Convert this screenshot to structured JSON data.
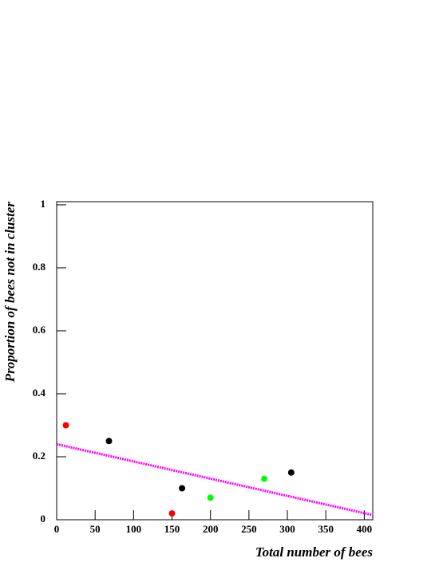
{
  "chart_data": {
    "type": "scatter",
    "x_label": "Total number of bees",
    "y_label": "Proportion of bees not in cluster",
    "x": [
      12,
      68,
      150,
      163,
      200,
      270,
      305
    ],
    "values": [
      0.3,
      0.25,
      0.02,
      0.1,
      0.07,
      0.13,
      0.15
    ],
    "colors": [
      "#ff0000",
      "#000000",
      "#ff0000",
      "#000000",
      "#00ff00",
      "#00ff00",
      "#000000"
    ],
    "fit": {
      "x": [
        0,
        411
      ],
      "values": [
        0.24,
        0.015
      ],
      "color": "#ff00ff"
    },
    "xlim": [
      0,
      411
    ],
    "ylim": [
      0,
      1.01
    ],
    "xticks": [
      0,
      50,
      100,
      150,
      200,
      250,
      300,
      350,
      400
    ],
    "yticks": [
      0,
      0.2,
      0.4,
      0.6,
      0.8,
      1
    ]
  }
}
